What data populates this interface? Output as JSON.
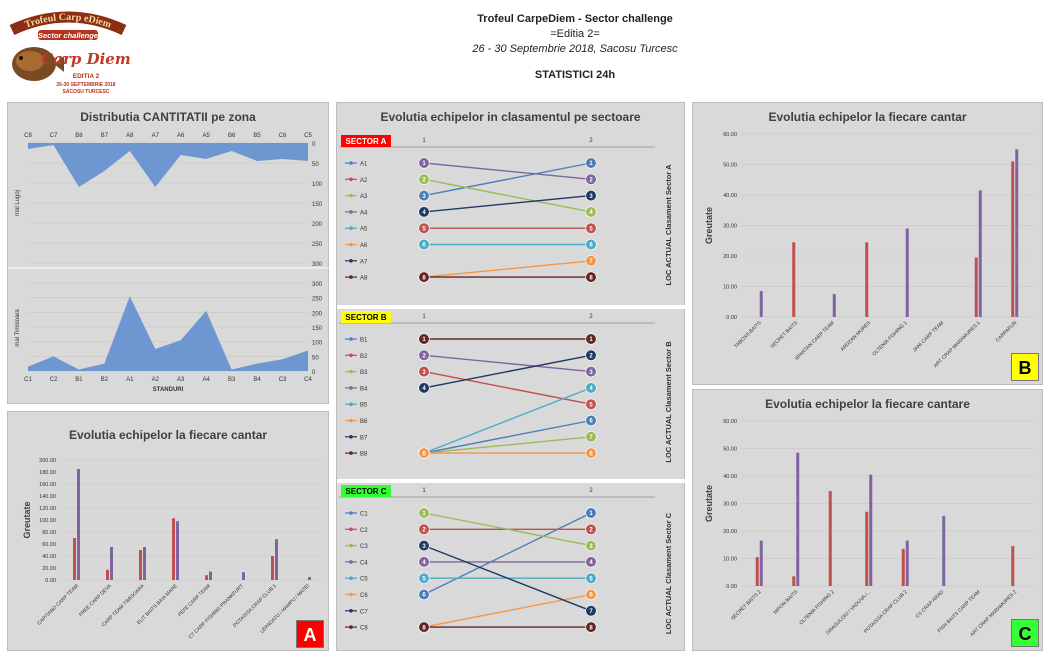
{
  "header": {
    "line1": "Trofeul CarpeDiem - Sector challenge",
    "line2": "=Editia 2=",
    "line3": "26 - 30 Septembrie 2018, Sacosu Turcesc",
    "line4": "STATISTICI 24h"
  },
  "logo": {
    "top": "Trofeul Carp eDiem",
    "middle": "Sector challenge",
    "script": "Carp Diem",
    "editia": "EDITIA 2",
    "dates": "26-30 SEPTEMBRIE 2018",
    "place": "SACOSU TURCESC"
  },
  "colors": {
    "area": "#6e97d1",
    "blue": "#4a7ebb",
    "red": "#c0504d",
    "green": "#9bbb59",
    "purple": "#8064a2",
    "cyan": "#4bacc6",
    "orange": "#f79646",
    "navy": "#1f3864",
    "maroon": "#632523"
  },
  "chart_data": [
    {
      "type": "area",
      "title": "Distributia CANTITATII pe zona",
      "xlabel": "STANDURI",
      "top": {
        "label": "mal Lugoj",
        "categories": [
          "C8",
          "C7",
          "B8",
          "B7",
          "A8",
          "A7",
          "A6",
          "A5",
          "B6",
          "B5",
          "C6",
          "C5"
        ],
        "values": [
          15,
          5,
          110,
          70,
          20,
          110,
          30,
          40,
          20,
          45,
          40,
          45
        ],
        "ylim": [
          0,
          300
        ],
        "ticks": [
          0,
          50,
          100,
          150,
          200,
          250,
          300
        ],
        "inverted": true
      },
      "bottom": {
        "label": "mal Timisoara",
        "categories": [
          "C1",
          "C2",
          "B1",
          "B2",
          "A1",
          "A2",
          "A3",
          "A4",
          "B3",
          "B4",
          "C3",
          "C4"
        ],
        "values": [
          15,
          50,
          5,
          25,
          255,
          75,
          105,
          205,
          5,
          25,
          40,
          70
        ],
        "ylim": [
          0,
          300
        ],
        "ticks": [
          0,
          50,
          100,
          150,
          200,
          250,
          300
        ]
      }
    },
    {
      "type": "bar",
      "title": "Evolutia echipelor la fiecare cantar",
      "ylabel": "Greutate",
      "badge": "A",
      "ylim": [
        0,
        200
      ],
      "ticks": [
        "0.00",
        "20.00",
        "40.00",
        "60.00",
        "80.00",
        "100.00",
        "120.00",
        "140.00",
        "160.00",
        "180.00",
        "200.00"
      ],
      "categories": [
        "CAPITANO CARP TEAM",
        "FREE CARP DEVA",
        "CARP TEAM TIMISOARA",
        "ELIT BAITS BAIA MARE",
        "FEFE CARP TEAM",
        "CT CARP FISHING FRANKFURT",
        "POTAISSA CRAP CLUB 1",
        "LEPADATU / HAMPU / MATEI"
      ],
      "series": [
        {
          "values": [
            70,
            17,
            50,
            103,
            8,
            0,
            40,
            0
          ]
        },
        {
          "values": [
            185,
            55,
            55,
            98,
            14,
            13,
            68,
            5
          ]
        }
      ]
    },
    {
      "type": "line",
      "title": "Evolutia echipelor in clasamentul pe sectoare",
      "sectors": [
        {
          "label": "SECTOR A",
          "color": "#ff0000",
          "textColor": "#ffffff",
          "ylabel": "LOC ACTUAL Clasament Sector A",
          "x": [
            "1",
            "2"
          ],
          "series": [
            {
              "name": "A1",
              "values": [
                3,
                1
              ]
            },
            {
              "name": "A2",
              "values": [
                5,
                5
              ]
            },
            {
              "name": "A3",
              "values": [
                2,
                4
              ]
            },
            {
              "name": "A4",
              "values": [
                1,
                2
              ]
            },
            {
              "name": "A5",
              "values": [
                6,
                6
              ]
            },
            {
              "name": "A6",
              "values": [
                8,
                7
              ]
            },
            {
              "name": "A7",
              "values": [
                4,
                3
              ]
            },
            {
              "name": "A8",
              "values": [
                8,
                8
              ]
            }
          ]
        },
        {
          "label": "SECTOR B",
          "color": "#ffff00",
          "textColor": "#000000",
          "ylabel": "LOC ACTUAL Clasament Sector B",
          "x": [
            "1",
            "2"
          ],
          "series": [
            {
              "name": "B1",
              "values": [
                8,
                6
              ]
            },
            {
              "name": "B2",
              "values": [
                3,
                5
              ]
            },
            {
              "name": "B3",
              "values": [
                8,
                7
              ]
            },
            {
              "name": "B4",
              "values": [
                2,
                3
              ]
            },
            {
              "name": "B5",
              "values": [
                8,
                4
              ]
            },
            {
              "name": "B6",
              "values": [
                8,
                8
              ]
            },
            {
              "name": "B7",
              "values": [
                4,
                2
              ]
            },
            {
              "name": "B8",
              "values": [
                1,
                1
              ]
            }
          ]
        },
        {
          "label": "SECTOR C",
          "color": "#33ff33",
          "textColor": "#000000",
          "ylabel": "LOC ACTUAL Clasament Sector C",
          "x": [
            "1",
            "2"
          ],
          "series": [
            {
              "name": "C1",
              "values": [
                6,
                1
              ]
            },
            {
              "name": "C2",
              "values": [
                2,
                2
              ]
            },
            {
              "name": "C3",
              "values": [
                1,
                3
              ]
            },
            {
              "name": "C4",
              "values": [
                4,
                4
              ]
            },
            {
              "name": "C5",
              "values": [
                5,
                5
              ]
            },
            {
              "name": "C6",
              "values": [
                8,
                6
              ]
            },
            {
              "name": "C7",
              "values": [
                3,
                7
              ]
            },
            {
              "name": "C8",
              "values": [
                8,
                8
              ]
            }
          ]
        }
      ]
    },
    {
      "type": "bar",
      "title": "Evolutia echipelor la fiecare cantar",
      "ylabel": "Greutate",
      "badge": "B",
      "ylim": [
        0,
        60
      ],
      "ticks": [
        "0.00",
        "10.00",
        "20.00",
        "30.00",
        "40.00",
        "50.00",
        "60.00"
      ],
      "categories": [
        "TABOSS BAITS",
        "SECRET BAITS",
        "SPARTAN CARP TEAM",
        "ARDZAN MURES",
        "OLTENIA FISHING 1",
        "JANI CARP TEAM",
        "ART CRAP MARAMURES 1",
        "CARPAFUN"
      ],
      "series": [
        {
          "values": [
            0,
            24.5,
            0,
            24.5,
            0,
            0,
            19.5,
            51
          ]
        },
        {
          "values": [
            8.5,
            0,
            7.5,
            0,
            29,
            0,
            41.5,
            55
          ]
        }
      ]
    },
    {
      "type": "bar",
      "title": "Evolutia echipelor la fiecare cantare",
      "ylabel": "Greutate",
      "badge": "C",
      "ylim": [
        0,
        60
      ],
      "ticks": [
        "0.00",
        "10.00",
        "20.00",
        "30.00",
        "40.00",
        "50.00",
        "60.00"
      ],
      "categories": [
        "SECRET BAITS 2",
        "NIPON BAITS",
        "OLTENIA FISHING 2",
        "DRAGULOIU / VADUVA /...",
        "POTAISSA CRAP CLUB 2",
        "CS CRAP ARAD",
        "FISH BAITS CARP TEAM",
        "ART CRAP MARAMURES 2"
      ],
      "series": [
        {
          "values": [
            10.5,
            3.5,
            34.5,
            27,
            13.5,
            0,
            0,
            14.5
          ]
        },
        {
          "values": [
            16.5,
            48.5,
            0,
            40.5,
            16.5,
            25.5,
            0,
            0
          ]
        }
      ]
    }
  ]
}
